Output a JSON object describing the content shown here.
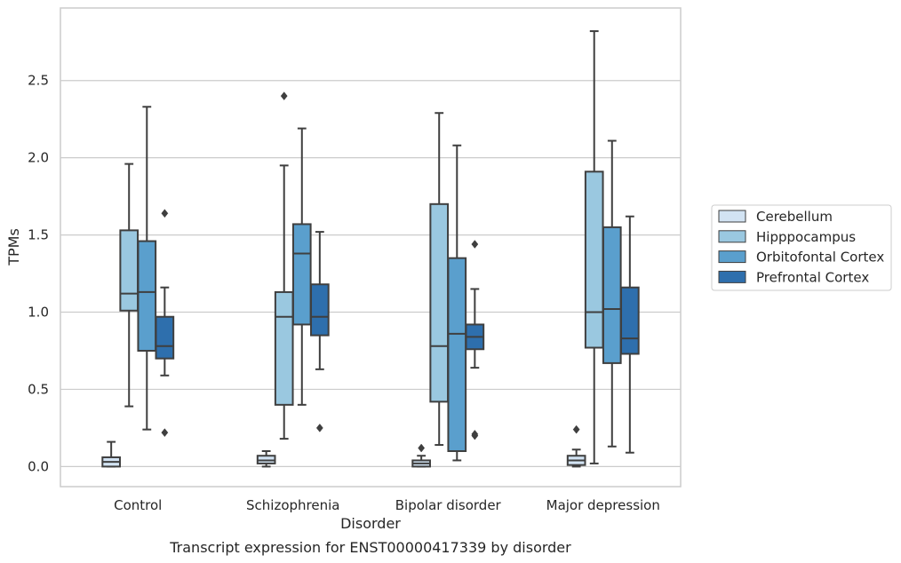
{
  "caption": "Transcript expression for ENST00000417339 by disorder",
  "chart_data": {
    "type": "boxplot",
    "xlabel": "Disorder",
    "ylabel": "TPMs",
    "ylim": [
      -0.13,
      2.97
    ],
    "yticks": [
      0.0,
      0.5,
      1.0,
      1.5,
      2.0,
      2.5
    ],
    "ytick_labels": [
      "0.0",
      "0.5",
      "1.0",
      "1.5",
      "2.0",
      "2.5"
    ],
    "grid": "horizontal",
    "legend_position": "right",
    "categories": [
      "Control",
      "Schizophrenia",
      "Bipolar disorder",
      "Major depression"
    ],
    "series": [
      {
        "name": "Cerebellum",
        "color": "#d2e3f3",
        "boxes": [
          {
            "whislo": 0.0,
            "q1": 0.0,
            "med": 0.03,
            "q3": 0.06,
            "whishi": 0.16,
            "fliers": []
          },
          {
            "whislo": 0.0,
            "q1": 0.02,
            "med": 0.04,
            "q3": 0.07,
            "whishi": 0.1,
            "fliers": []
          },
          {
            "whislo": 0.0,
            "q1": 0.0,
            "med": 0.02,
            "q3": 0.04,
            "whishi": 0.07,
            "fliers": [
              0.12
            ]
          },
          {
            "whislo": 0.0,
            "q1": 0.01,
            "med": 0.04,
            "q3": 0.07,
            "whishi": 0.11,
            "fliers": [
              0.24
            ]
          }
        ]
      },
      {
        "name": "Hipppocampus",
        "color": "#9ac8e0",
        "boxes": [
          {
            "whislo": 0.39,
            "q1": 1.01,
            "med": 1.12,
            "q3": 1.53,
            "whishi": 1.96,
            "fliers": []
          },
          {
            "whislo": 0.18,
            "q1": 0.4,
            "med": 0.97,
            "q3": 1.13,
            "whishi": 1.95,
            "fliers": [
              2.4
            ]
          },
          {
            "whislo": 0.14,
            "q1": 0.42,
            "med": 0.78,
            "q3": 1.7,
            "whishi": 2.29,
            "fliers": []
          },
          {
            "whislo": 0.02,
            "q1": 0.77,
            "med": 1.0,
            "q3": 1.91,
            "whishi": 2.82,
            "fliers": []
          }
        ]
      },
      {
        "name": "Orbitofontal Cortex",
        "color": "#5a9fcd",
        "boxes": [
          {
            "whislo": 0.24,
            "q1": 0.75,
            "med": 1.13,
            "q3": 1.46,
            "whishi": 2.33,
            "fliers": []
          },
          {
            "whislo": 0.4,
            "q1": 0.92,
            "med": 1.38,
            "q3": 1.57,
            "whishi": 2.19,
            "fliers": []
          },
          {
            "whislo": 0.04,
            "q1": 0.1,
            "med": 0.86,
            "q3": 1.35,
            "whishi": 2.08,
            "fliers": []
          },
          {
            "whislo": 0.13,
            "q1": 0.67,
            "med": 1.02,
            "q3": 1.55,
            "whishi": 2.11,
            "fliers": []
          }
        ]
      },
      {
        "name": "Prefrontal Cortex",
        "color": "#2e6fad",
        "boxes": [
          {
            "whislo": 0.59,
            "q1": 0.7,
            "med": 0.78,
            "q3": 0.97,
            "whishi": 1.16,
            "fliers": [
              1.64,
              0.22
            ]
          },
          {
            "whislo": 0.63,
            "q1": 0.85,
            "med": 0.97,
            "q3": 1.18,
            "whishi": 1.52,
            "fliers": [
              0.25
            ]
          },
          {
            "whislo": 0.64,
            "q1": 0.76,
            "med": 0.84,
            "q3": 0.92,
            "whishi": 1.15,
            "fliers": [
              1.44,
              0.21,
              0.2
            ]
          },
          {
            "whislo": 0.09,
            "q1": 0.73,
            "med": 0.83,
            "q3": 1.16,
            "whishi": 1.62,
            "fliers": []
          }
        ]
      }
    ]
  }
}
